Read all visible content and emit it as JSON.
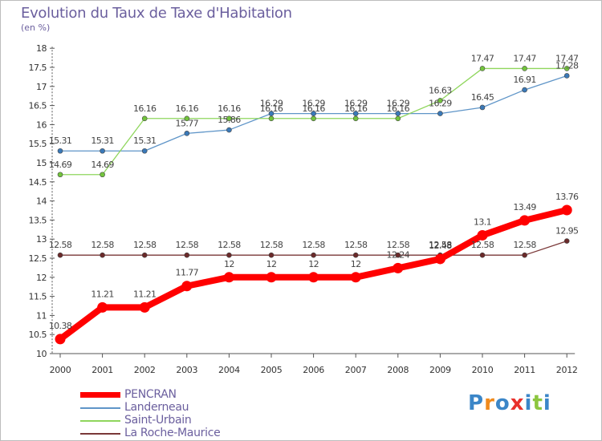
{
  "chart_data": {
    "type": "line",
    "title": "Evolution du Taux de Taxe d'Habitation",
    "subtitle": "(en %)",
    "xlabel": "",
    "ylabel": "",
    "x": [
      "2000",
      "2001",
      "2002",
      "2003",
      "2004",
      "2005",
      "2006",
      "2007",
      "2008",
      "2009",
      "2010",
      "2011",
      "2012"
    ],
    "ylim": [
      10,
      18
    ],
    "yticks": [
      "10",
      "10.5",
      "11",
      "11.5",
      "12",
      "12.5",
      "13",
      "13.5",
      "14",
      "14.5",
      "15",
      "15.5",
      "16",
      "16.5",
      "17",
      "17.5",
      "18"
    ],
    "grid": false,
    "legend_position": "bottom-left",
    "series": [
      {
        "name": "Landerneau",
        "color": "#5f95c8",
        "marker": "#3a79b8",
        "values": [
          15.31,
          15.31,
          15.31,
          15.77,
          15.86,
          16.29,
          16.29,
          16.29,
          16.29,
          16.29,
          16.45,
          16.91,
          17.28
        ],
        "labels": [
          "15.31",
          "15.31",
          "15.31",
          "15.77",
          "15.86",
          "16.29",
          "16.29",
          "16.29",
          "16.29",
          "16.29",
          "16.45",
          "16.91",
          "17.28"
        ]
      },
      {
        "name": "Saint-Urbain",
        "color": "#8fd65c",
        "marker": "#73c43d",
        "values": [
          14.69,
          14.69,
          16.16,
          16.16,
          16.16,
          16.16,
          16.16,
          16.16,
          16.16,
          16.63,
          17.47,
          17.47,
          17.47
        ],
        "labels": [
          "14.69",
          "14.69",
          "16.16",
          "16.16",
          "16.16",
          "16.16",
          "16.16",
          "16.16",
          "16.16",
          "16.63",
          "17.47",
          "17.47",
          "17.47"
        ]
      },
      {
        "name": "La Roche-Maurice",
        "color": "#7a3838",
        "marker": "#6b2a2a",
        "values": [
          12.58,
          12.58,
          12.58,
          12.58,
          12.58,
          12.58,
          12.58,
          12.58,
          12.58,
          12.58,
          12.58,
          12.58,
          12.95
        ],
        "labels": [
          "12.58",
          "12.58",
          "12.58",
          "12.58",
          "12.58",
          "12.58",
          "12.58",
          "12.58",
          "12.58",
          "12.58",
          "12.58",
          "12.58",
          "12.95"
        ]
      },
      {
        "name": "PENCRAN",
        "color": "#ff0000",
        "marker": "#ff0000",
        "emphasis": true,
        "values": [
          10.38,
          11.21,
          11.21,
          11.77,
          12,
          12,
          12,
          12,
          12.24,
          12.48,
          13.1,
          13.49,
          13.76
        ],
        "labels": [
          "10.38",
          "11.21",
          "11.21",
          "11.77",
          "12",
          "12",
          "12",
          "12",
          "12.24",
          "12.48",
          "13.1",
          "13.49",
          "13.76"
        ]
      }
    ],
    "legend": [
      "PENCRAN",
      "Landerneau",
      "Saint-Urbain",
      "La Roche-Maurice"
    ]
  },
  "brand": {
    "text": "Proxiti",
    "letter_colors": [
      "#3b86c8",
      "#f08a1c",
      "#3b86c8",
      "#e8302b",
      "#3b86c8",
      "#8cc63f",
      "#3b86c8"
    ]
  },
  "colors": {
    "text": "#6b5f9e",
    "axis": "#555555",
    "label": "#444444",
    "border": "#bdbdbd"
  }
}
